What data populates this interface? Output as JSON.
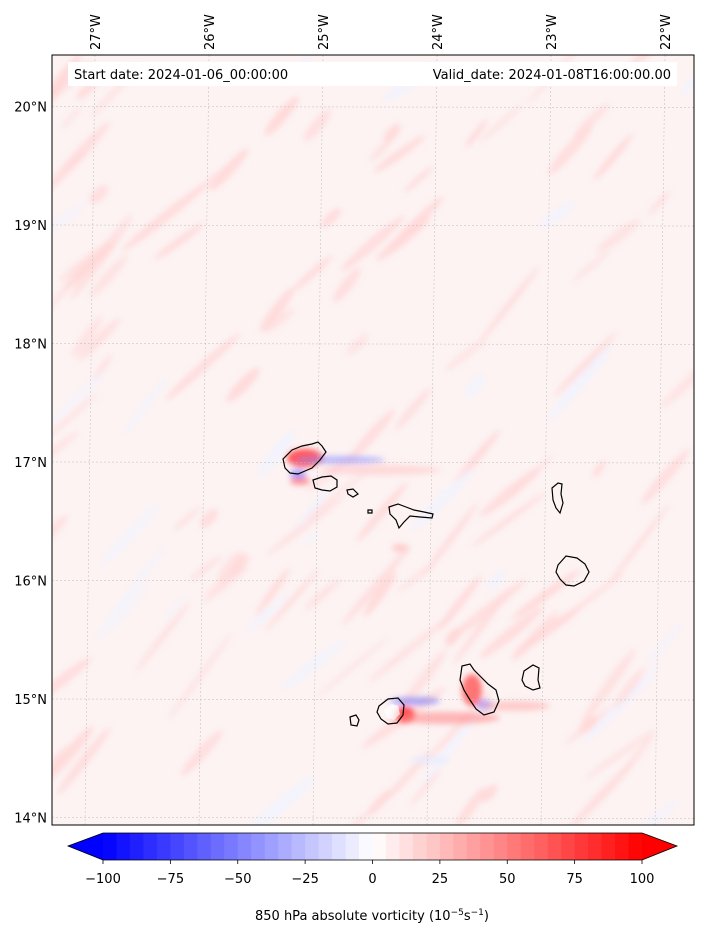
{
  "map": {
    "start_date_text": "Start date: 2024-01-06_00:00:00",
    "valid_date_text": "Valid_date: 2024-01-08T16:00:00.00",
    "lon_ticks": [
      {
        "lon": -27,
        "label": "27°W"
      },
      {
        "lon": -26,
        "label": "26°W"
      },
      {
        "lon": -25,
        "label": "25°W"
      },
      {
        "lon": -24,
        "label": "24°W"
      },
      {
        "lon": -23,
        "label": "23°W"
      },
      {
        "lon": -22,
        "label": "22°W"
      }
    ],
    "lat_ticks": [
      {
        "lat": 20,
        "label": "20°N"
      },
      {
        "lat": 19,
        "label": "19°N"
      },
      {
        "lat": 18,
        "label": "18°N"
      },
      {
        "lat": 17,
        "label": "17°N"
      },
      {
        "lat": 16,
        "label": "16°N"
      },
      {
        "lat": 15,
        "label": "15°N"
      },
      {
        "lat": 14,
        "label": "14°N"
      }
    ],
    "gridlines": true,
    "coastline_color": "#000000"
  },
  "colorbar": {
    "cmap": "bwr",
    "vmin": -100,
    "vmax": 100,
    "extend": "both",
    "ticks": [
      "−100",
      "−75",
      "−50",
      "−25",
      "0",
      "25",
      "50",
      "75",
      "100"
    ],
    "label_main": "850 hPa absolute vorticity (10",
    "label_exp1": "−5",
    "label_mid": "s",
    "label_exp2": "−1",
    "label_end": ")",
    "low_color": "#0000ff",
    "mid_color": "#ffffff",
    "high_color": "#ff0000"
  }
}
